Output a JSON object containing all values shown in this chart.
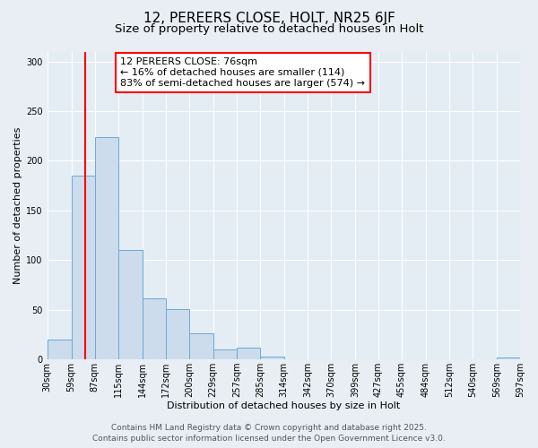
{
  "title_line1": "12, PEREERS CLOSE, HOLT, NR25 6JF",
  "title_line2": "Size of property relative to detached houses in Holt",
  "xlabel": "Distribution of detached houses by size in Holt",
  "ylabel": "Number of detached properties",
  "bar_edges": [
    30,
    59,
    87,
    115,
    144,
    172,
    200,
    229,
    257,
    285,
    314,
    342,
    370,
    399,
    427,
    455,
    484,
    512,
    540,
    569,
    597
  ],
  "bar_heights": [
    20,
    185,
    224,
    110,
    61,
    51,
    26,
    10,
    12,
    3,
    0,
    0,
    0,
    0,
    0,
    0,
    0,
    0,
    0,
    2
  ],
  "bar_color": "#ccdcec",
  "bar_edgecolor": "#6aaad4",
  "redline_x": 76,
  "ylim": [
    0,
    310
  ],
  "yticks": [
    0,
    50,
    100,
    150,
    200,
    250,
    300
  ],
  "xtick_labels": [
    "30sqm",
    "59sqm",
    "87sqm",
    "115sqm",
    "144sqm",
    "172sqm",
    "200sqm",
    "229sqm",
    "257sqm",
    "285sqm",
    "314sqm",
    "342sqm",
    "370sqm",
    "399sqm",
    "427sqm",
    "455sqm",
    "484sqm",
    "512sqm",
    "540sqm",
    "569sqm",
    "597sqm"
  ],
  "annotation_line1": "12 PEREERS CLOSE: 76sqm",
  "annotation_line2": "← 16% of detached houses are smaller (114)",
  "annotation_line3": "83% of semi-detached houses are larger (574) →",
  "footer_line1": "Contains HM Land Registry data © Crown copyright and database right 2025.",
  "footer_line2": "Contains public sector information licensed under the Open Government Licence v3.0.",
  "bg_color": "#e8eef4",
  "plot_bg_color": "#e4ecf4",
  "grid_color": "#ffffff",
  "title_fontsize": 11,
  "subtitle_fontsize": 9.5,
  "axis_label_fontsize": 8,
  "tick_fontsize": 7,
  "annotation_fontsize": 8,
  "footer_fontsize": 6.5
}
